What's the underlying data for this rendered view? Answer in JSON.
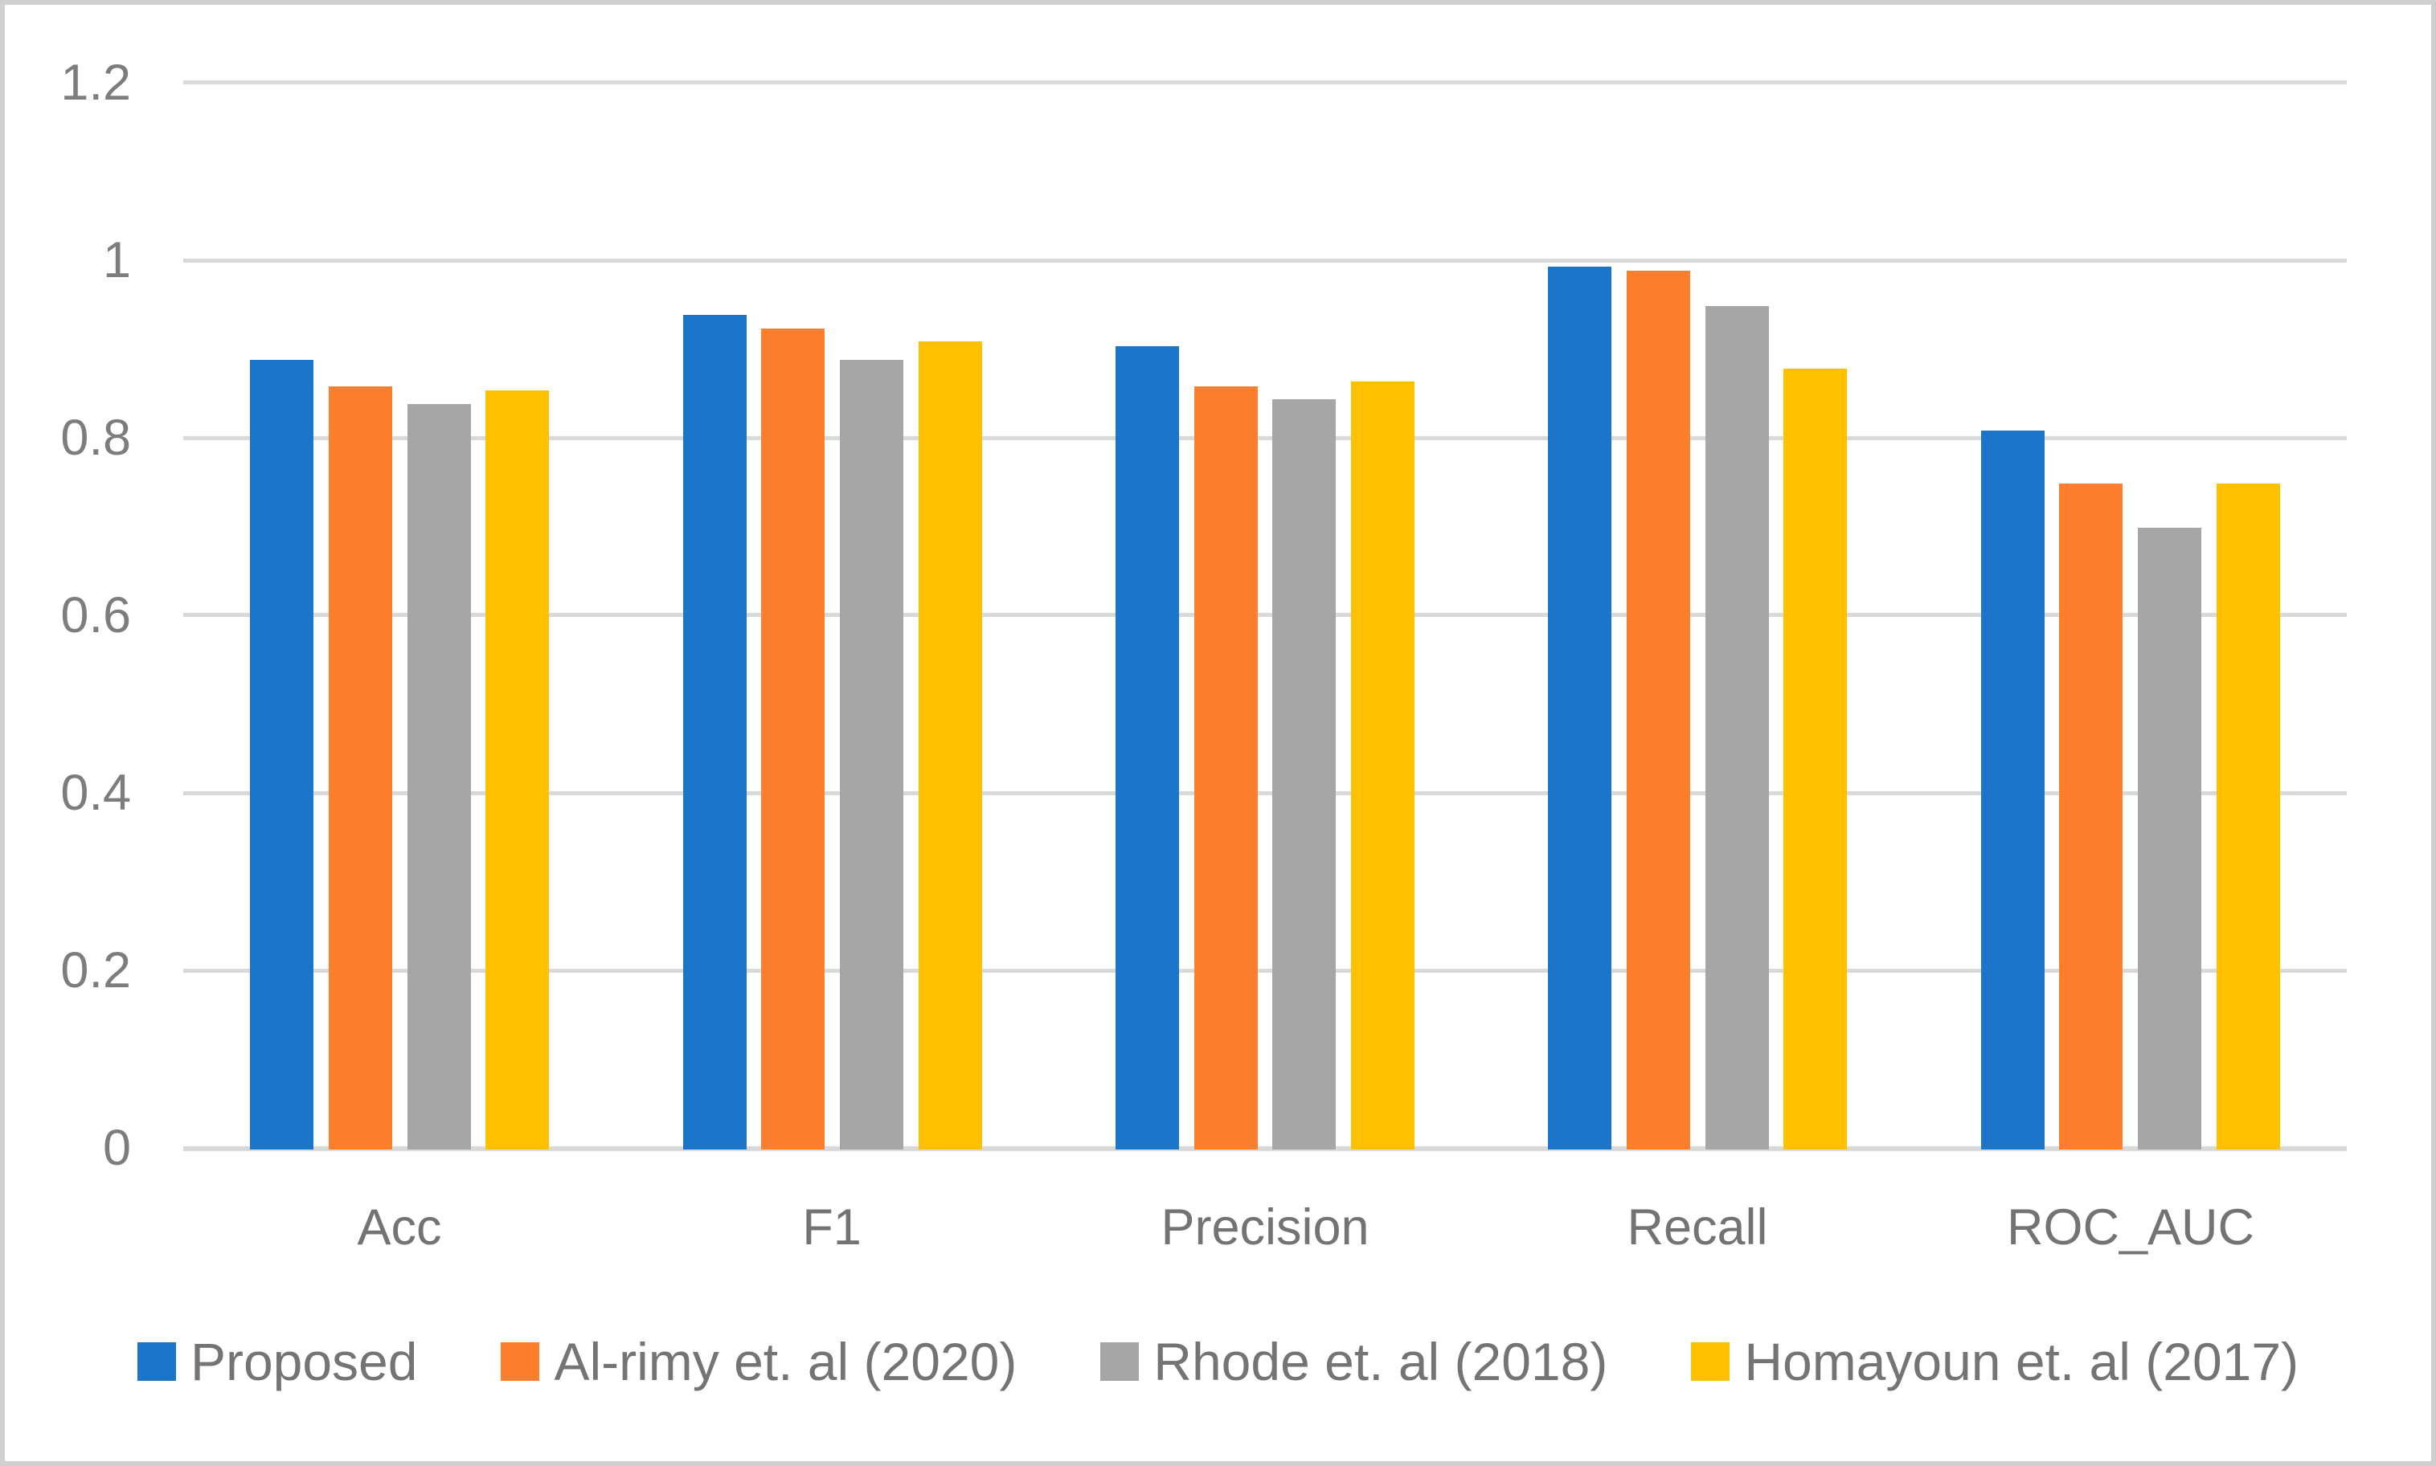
{
  "chart_data": {
    "type": "bar",
    "categories": [
      "Acc",
      "F1",
      "Precision",
      "Recall",
      "ROC_AUC"
    ],
    "series": [
      {
        "name": "Proposed",
        "color": "#1b75c8",
        "values": [
          0.89,
          0.94,
          0.905,
          0.995,
          0.81
        ]
      },
      {
        "name": "Al-rimy et. al (2020)",
        "color": "#fd7e2c",
        "values": [
          0.86,
          0.925,
          0.86,
          0.99,
          0.75
        ]
      },
      {
        "name": "Rhode et. al (2018)",
        "color": "#a6a6a6",
        "values": [
          0.84,
          0.89,
          0.845,
          0.95,
          0.7
        ]
      },
      {
        "name": "Homayoun et. al (2017)",
        "color": "#ffc000",
        "values": [
          0.855,
          0.91,
          0.865,
          0.88,
          0.75
        ]
      }
    ],
    "y_axis": {
      "min": 0,
      "max": 1.2,
      "step": 0.2,
      "tick_labels": [
        "0",
        "0.2",
        "0.4",
        "0.6",
        "0.8",
        "1",
        "1.2"
      ]
    },
    "grid": true,
    "legend_position": "bottom"
  },
  "style": {
    "background": "#ffffff",
    "frame_border_color": "#cfcfcf",
    "gridline_color": "#d9d9d9",
    "tick_label_color": "#7d7d7d",
    "category_label_color": "#737373",
    "legend_label_color": "#747474"
  }
}
